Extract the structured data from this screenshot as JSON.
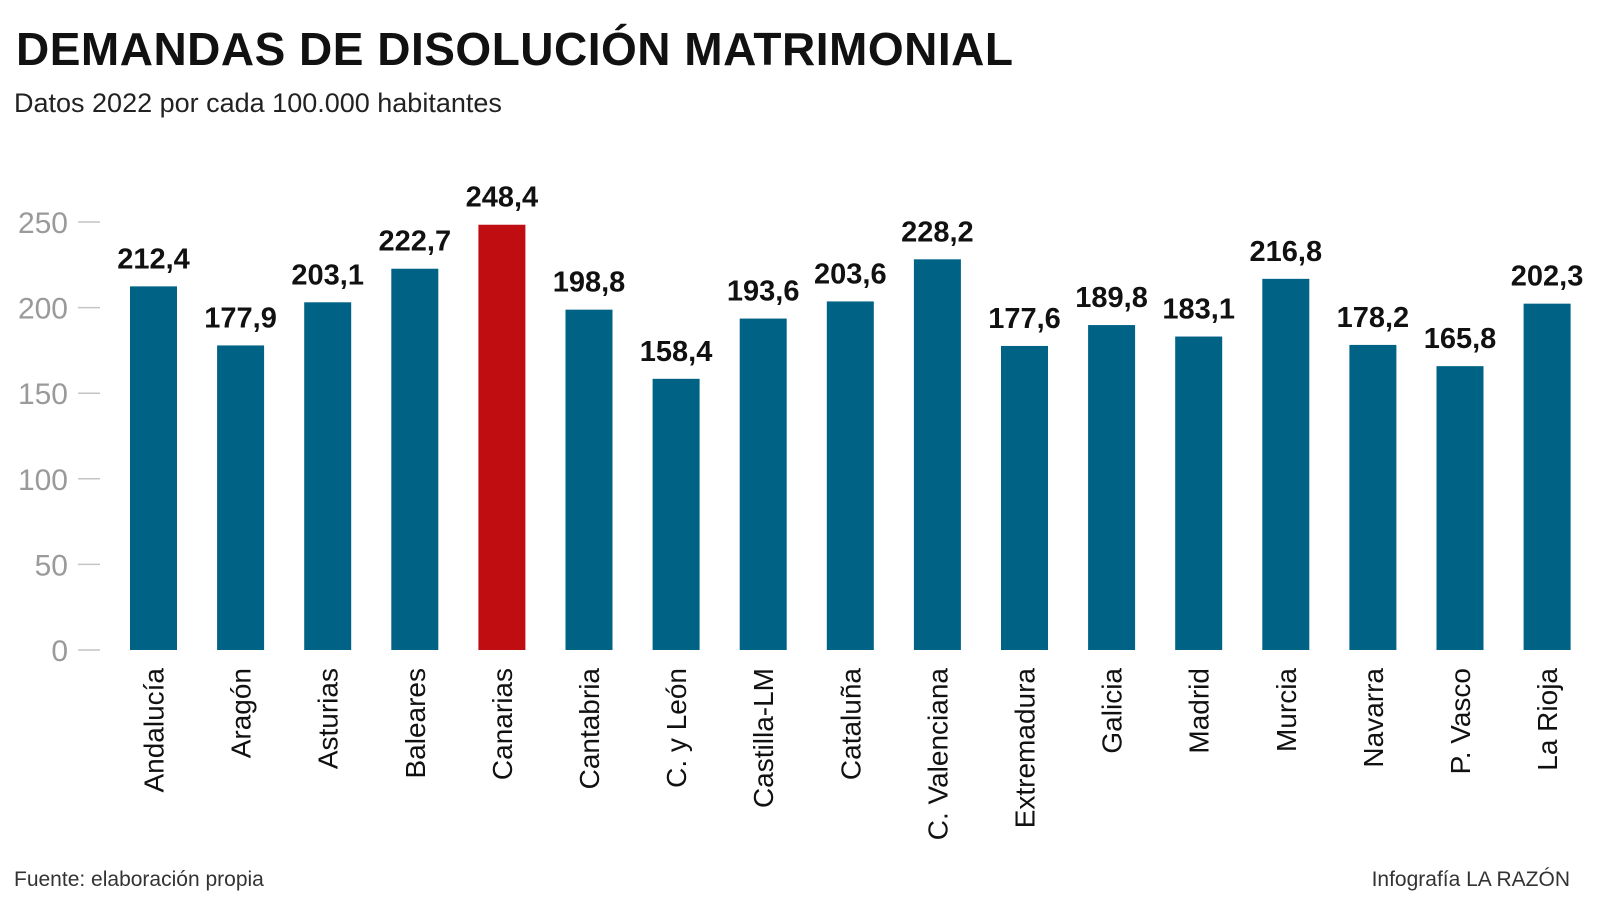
{
  "chart_data": {
    "type": "bar",
    "title": "DEMANDAS DE DISOLUCIÓN MATRIMONIAL",
    "subtitle": "Datos 2022 por cada 100.000 habitantes",
    "categories": [
      "Andalucía",
      "Aragón",
      "Asturias",
      "Baleares",
      "Canarias",
      "Cantabria",
      "C. y León",
      "Castilla-LM",
      "Cataluña",
      "C. Valenciana",
      "Extremadura",
      "Galicia",
      "Madrid",
      "Murcia",
      "Navarra",
      "P. Vasco",
      "La Rioja"
    ],
    "values": [
      212.4,
      177.9,
      203.1,
      222.7,
      248.4,
      198.8,
      158.4,
      193.6,
      203.6,
      228.2,
      177.6,
      189.8,
      183.1,
      216.8,
      178.2,
      165.8,
      202.3
    ],
    "value_labels": [
      "212,4",
      "177,9",
      "203,1",
      "222,7",
      "248,4",
      "198,8",
      "158,4",
      "193,6",
      "203,6",
      "228,2",
      "177,6",
      "189,8",
      "183,1",
      "216,8",
      "178,2",
      "165,8",
      "202,3"
    ],
    "highlight": "Canarias",
    "yticks": [
      0,
      50,
      100,
      150,
      200,
      250
    ],
    "ylim": [
      0,
      250
    ],
    "xlabel": "",
    "ylabel": "",
    "grid": false,
    "colors": {
      "bar": "#006285",
      "highlight": "#c00d12",
      "tick": "#9a9a9a"
    }
  },
  "footer": {
    "source": "Fuente: elaboración propia",
    "credit": "Infografía LA RAZÓN"
  }
}
